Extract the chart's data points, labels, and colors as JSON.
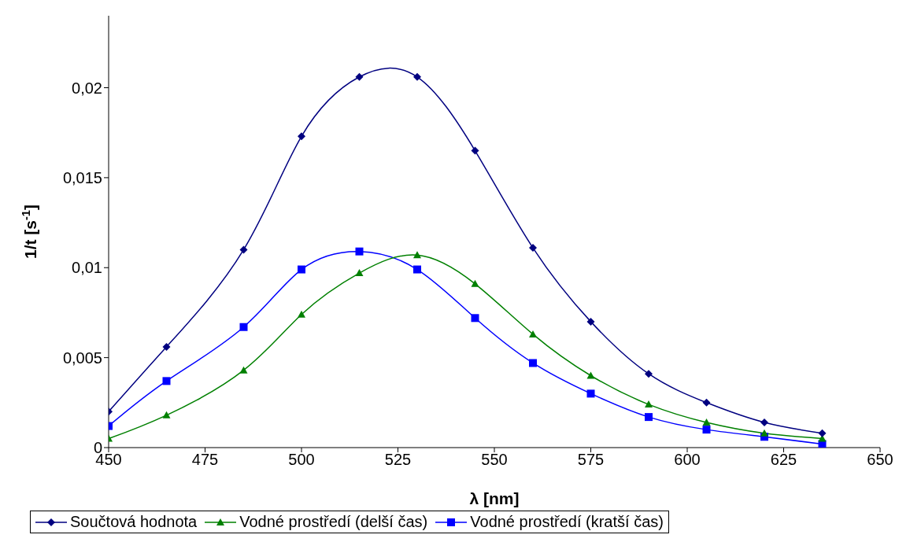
{
  "chart_data": {
    "type": "line",
    "xlabel": "λ [nm]",
    "ylabel": "1/t [s$^{-1}$]",
    "x": [
      450,
      465,
      485,
      500,
      515,
      530,
      545,
      560,
      575,
      590,
      605,
      620,
      635
    ],
    "xlim": [
      450,
      650
    ],
    "xticks": [
      450,
      475,
      500,
      525,
      550,
      575,
      600,
      625,
      650
    ],
    "ylim": [
      0,
      0.024
    ],
    "yticks": [
      {
        "value": 0,
        "label": "0"
      },
      {
        "value": 0.005,
        "label": "0,005"
      },
      {
        "value": 0.01,
        "label": "0,01"
      },
      {
        "value": 0.015,
        "label": "0,015"
      },
      {
        "value": 0.02,
        "label": "0,02"
      }
    ],
    "grid": false,
    "legend": "bottom",
    "line_style": "solid",
    "series": [
      {
        "name": "Součtová hodnota",
        "color": "#000080",
        "marker": "diamond",
        "values": [
          0.002,
          0.0056,
          0.011,
          0.0173,
          0.0206,
          0.0206,
          0.0165,
          0.0111,
          0.007,
          0.0041,
          0.0025,
          0.0014,
          0.0008
        ]
      },
      {
        "name": "Vodné prostředí (delší čas)",
        "color": "#008000",
        "marker": "triangle",
        "values": [
          0.0005,
          0.0018,
          0.0043,
          0.0074,
          0.0097,
          0.0107,
          0.0091,
          0.0063,
          0.004,
          0.0024,
          0.0014,
          0.0008,
          0.0005
        ]
      },
      {
        "name": "Vodné prostředí (kratší čas)",
        "color": "#0000ff",
        "marker": "square",
        "values": [
          0.0012,
          0.0037,
          0.0067,
          0.0099,
          0.0109,
          0.0099,
          0.0072,
          0.0047,
          0.003,
          0.0017,
          0.001,
          0.0006,
          0.0002
        ]
      }
    ]
  }
}
